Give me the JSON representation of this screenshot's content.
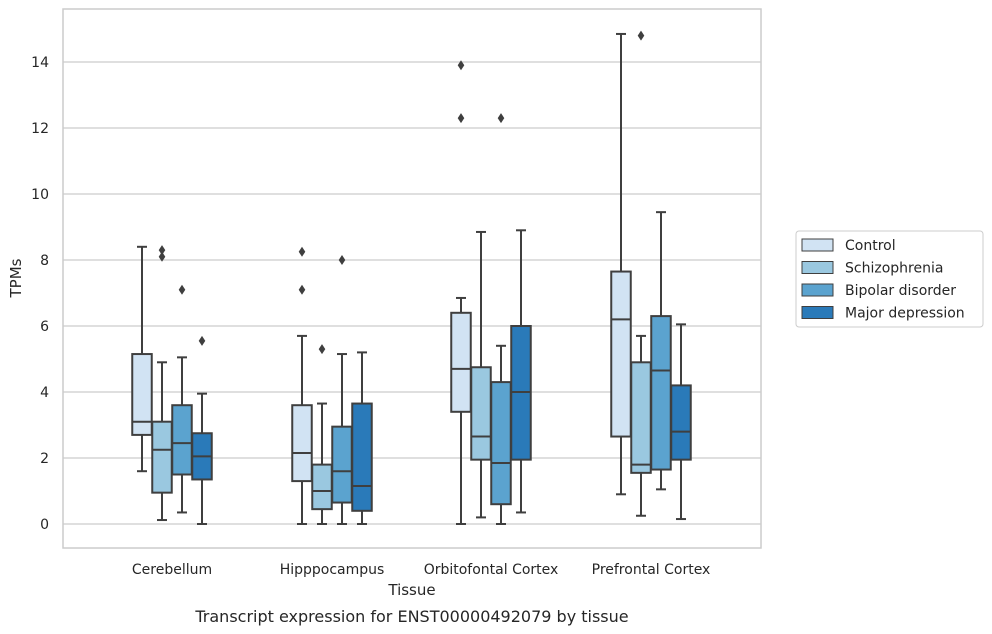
{
  "chart_data": {
    "type": "box",
    "title": "",
    "caption": "Transcript expression for ENST00000492079 by tissue",
    "xlabel": "Tissue",
    "ylabel": "TPMs",
    "ylim": [
      -0.7,
      15.4
    ],
    "yticks": [
      0,
      2,
      4,
      6,
      8,
      10,
      12,
      14
    ],
    "grid": "horizontal",
    "legend_position": "right",
    "categories": [
      "Cerebellum",
      "Hipppocampus",
      "Orbitofontal Cortex",
      "Prefrontal Cortex"
    ],
    "series": [
      {
        "name": "Control",
        "color": "#d1e3f3",
        "boxes": [
          {
            "whisker_low": 1.6,
            "q1": 2.7,
            "median": 3.1,
            "q3": 5.15,
            "whisker_high": 8.4,
            "outliers": []
          },
          {
            "whisker_low": 0.0,
            "q1": 1.3,
            "median": 2.15,
            "q3": 3.6,
            "whisker_high": 5.7,
            "outliers": [
              7.1,
              8.25
            ]
          },
          {
            "whisker_low": 0.0,
            "q1": 3.4,
            "median": 4.7,
            "q3": 6.4,
            "whisker_high": 6.85,
            "outliers": [
              12.3,
              13.9
            ]
          },
          {
            "whisker_low": 0.9,
            "q1": 2.65,
            "median": 6.2,
            "q3": 7.65,
            "whisker_high": 14.85,
            "outliers": []
          }
        ]
      },
      {
        "name": "Schizophrenia",
        "color": "#9ac8e0",
        "boxes": [
          {
            "whisker_low": 0.12,
            "q1": 0.95,
            "median": 2.25,
            "q3": 3.1,
            "whisker_high": 4.9,
            "outliers": [
              8.1,
              8.3
            ]
          },
          {
            "whisker_low": 0.0,
            "q1": 0.45,
            "median": 1.0,
            "q3": 1.8,
            "whisker_high": 3.65,
            "outliers": [
              5.3
            ]
          },
          {
            "whisker_low": 0.2,
            "q1": 1.95,
            "median": 2.65,
            "q3": 4.75,
            "whisker_high": 8.85,
            "outliers": []
          },
          {
            "whisker_low": 0.25,
            "q1": 1.55,
            "median": 1.8,
            "q3": 4.9,
            "whisker_high": 5.7,
            "outliers": [
              14.8
            ]
          }
        ]
      },
      {
        "name": "Bipolar disorder",
        "color": "#5ba3cf",
        "boxes": [
          {
            "whisker_low": 0.35,
            "q1": 1.5,
            "median": 2.45,
            "q3": 3.6,
            "whisker_high": 5.05,
            "outliers": [
              7.1
            ]
          },
          {
            "whisker_low": 0.0,
            "q1": 0.65,
            "median": 1.6,
            "q3": 2.95,
            "whisker_high": 5.15,
            "outliers": [
              8.0
            ]
          },
          {
            "whisker_low": 0.0,
            "q1": 0.6,
            "median": 1.85,
            "q3": 4.3,
            "whisker_high": 5.4,
            "outliers": [
              12.3
            ]
          },
          {
            "whisker_low": 1.05,
            "q1": 1.65,
            "median": 4.65,
            "q3": 6.3,
            "whisker_high": 9.45,
            "outliers": []
          }
        ]
      },
      {
        "name": "Major depression",
        "color": "#2a7ab9",
        "boxes": [
          {
            "whisker_low": 0.0,
            "q1": 1.35,
            "median": 2.05,
            "q3": 2.75,
            "whisker_high": 3.95,
            "outliers": [
              5.55
            ]
          },
          {
            "whisker_low": 0.0,
            "q1": 0.4,
            "median": 1.15,
            "q3": 3.65,
            "whisker_high": 5.2,
            "outliers": []
          },
          {
            "whisker_low": 0.35,
            "q1": 1.95,
            "median": 4.0,
            "q3": 6.0,
            "whisker_high": 8.9,
            "outliers": []
          },
          {
            "whisker_low": 0.15,
            "q1": 1.95,
            "median": 2.8,
            "q3": 4.2,
            "whisker_high": 6.05,
            "outliers": []
          }
        ]
      }
    ]
  }
}
